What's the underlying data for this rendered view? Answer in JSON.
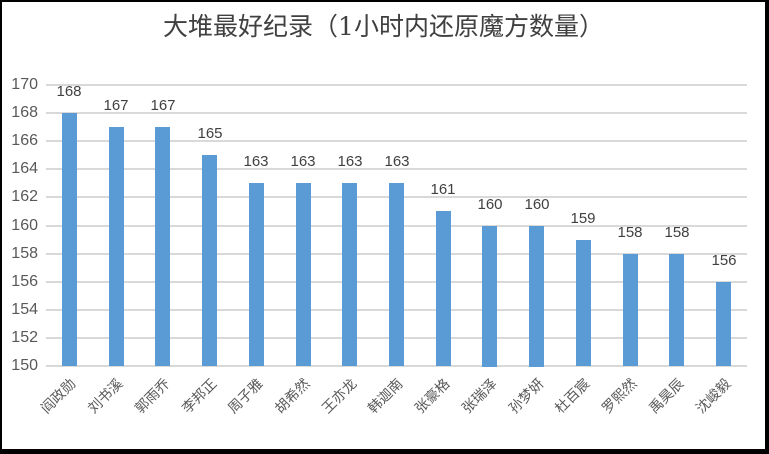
{
  "chart_data": {
    "type": "bar",
    "title": "大堆最好纪录（1小时内还原魔方数量）",
    "categories": [
      "阎政勋",
      "刘书溪",
      "郭雨乔",
      "李邦正",
      "周子雅",
      "胡希然",
      "王亦龙",
      "韩迦南",
      "张豪格",
      "张瑞泽",
      "孙梦妍",
      "杜百宸",
      "罗熙然",
      "禹昊辰",
      "沈峻毅"
    ],
    "values": [
      168,
      167,
      167,
      165,
      163,
      163,
      163,
      163,
      161,
      160,
      160,
      159,
      158,
      158,
      156
    ],
    "data_labels": [
      168,
      167,
      167,
      165,
      163,
      163,
      163,
      163,
      161,
      160,
      160,
      159,
      158,
      158,
      156
    ],
    "xlabel": "",
    "ylabel": "",
    "ylim": [
      150,
      170
    ],
    "ytick_step": 2,
    "yticks": [
      150,
      152,
      154,
      156,
      158,
      160,
      162,
      164,
      166,
      168,
      170
    ],
    "grid": true,
    "legend": false,
    "colors": {
      "bar_fill": "#5B9BD5",
      "gridline": "#D9D9D9",
      "axis_text": "#595959",
      "data_label_text": "#404040",
      "title_text": "#404040",
      "frame_border": "#000000",
      "background": "#FFFFFF"
    }
  }
}
